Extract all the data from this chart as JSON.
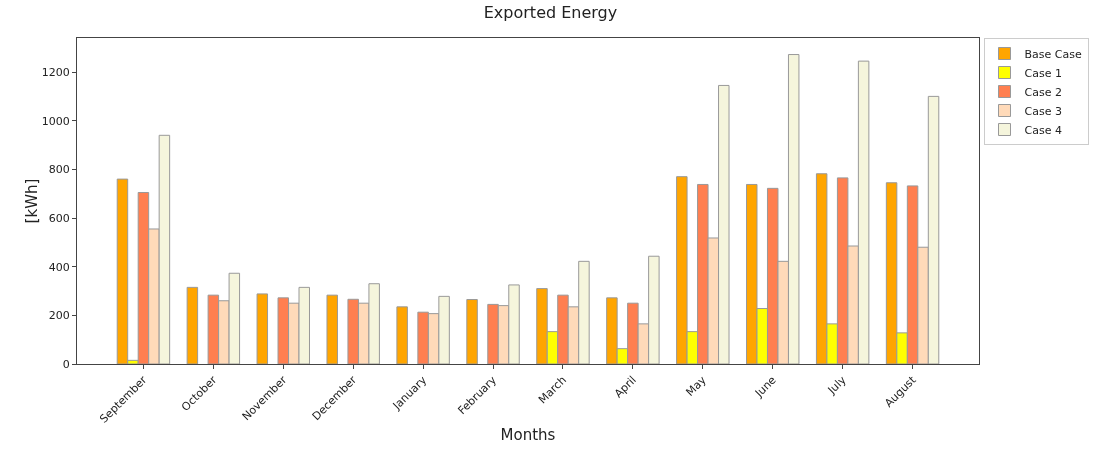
{
  "chart_data": {
    "type": "bar",
    "title": "Exported Energy",
    "xlabel": "Months",
    "ylabel": "[kWh]",
    "categories": [
      "September",
      "October",
      "November",
      "December",
      "January",
      "February",
      "March",
      "April",
      "May",
      "June",
      "July",
      "August"
    ],
    "series": [
      {
        "name": "Base Case",
        "color": "#ffa500",
        "values": [
          760,
          315,
          288,
          283,
          235,
          265,
          310,
          272,
          770,
          738,
          782,
          745
        ]
      },
      {
        "name": "Case 1",
        "color": "#ffff00",
        "values": [
          15,
          null,
          null,
          null,
          null,
          null,
          133,
          63,
          133,
          228,
          165,
          128
        ]
      },
      {
        "name": "Case 2",
        "color": "#ff7f50",
        "values": [
          705,
          283,
          272,
          266,
          213,
          245,
          283,
          250,
          738,
          722,
          765,
          732
        ]
      },
      {
        "name": "Case 3",
        "color": "#ffdab9",
        "values": [
          555,
          260,
          250,
          250,
          207,
          240,
          235,
          165,
          518,
          422,
          485,
          480
        ]
      },
      {
        "name": "Case 4",
        "color": "#f5f5dc",
        "values": [
          940,
          373,
          315,
          330,
          278,
          325,
          422,
          443,
          1145,
          1272,
          1245,
          1100
        ]
      }
    ],
    "ylim": [
      0,
      1340
    ],
    "yticks": [
      0,
      200,
      400,
      600,
      800,
      1000,
      1200
    ],
    "grid": false,
    "legend": "top right"
  }
}
